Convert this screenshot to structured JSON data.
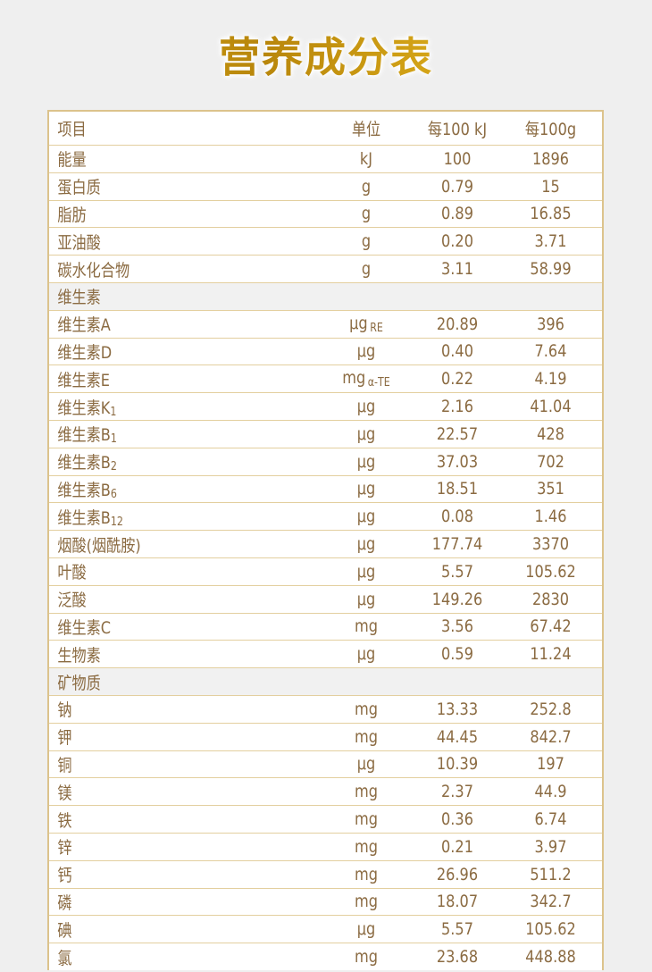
{
  "title": "营养成分表",
  "colors": {
    "text": "#8b6b42",
    "border": "#dcc38c",
    "title_gold": "#c99a12",
    "background": "#efefef"
  },
  "header": {
    "name": "项目",
    "unit": "单位",
    "per100kj": "每100 kJ",
    "per100g": "每100g"
  },
  "rows": [
    {
      "name": "能量",
      "unit": "kJ",
      "per100kj": "100",
      "per100g": "1896"
    },
    {
      "name": "蛋白质",
      "unit": "g",
      "per100kj": "0.79",
      "per100g": "15"
    },
    {
      "name": "脂肪",
      "unit": "g",
      "per100kj": "0.89",
      "per100g": "16.85"
    },
    {
      "name": "亚油酸",
      "unit": "g",
      "per100kj": "0.20",
      "per100g": "3.71"
    },
    {
      "name": "碳水化合物",
      "unit": "g",
      "per100kj": "3.11",
      "per100g": "58.99"
    },
    {
      "section": true,
      "name": "维生素"
    },
    {
      "name": "维生素A",
      "unit": "μg",
      "unit_suffix": "RE",
      "per100kj": "20.89",
      "per100g": "396"
    },
    {
      "name": "维生素D",
      "unit": "μg",
      "per100kj": "0.40",
      "per100g": "7.64"
    },
    {
      "name": "维生素E",
      "unit": "mg",
      "unit_suffix": "α-TE",
      "per100kj": "0.22",
      "per100g": "4.19"
    },
    {
      "name": "维生素K",
      "sub": "1",
      "unit": "μg",
      "per100kj": "2.16",
      "per100g": "41.04"
    },
    {
      "name": "维生素B",
      "sub": "1",
      "unit": "μg",
      "per100kj": "22.57",
      "per100g": "428"
    },
    {
      "name": "维生素B",
      "sub": "2",
      "unit": "μg",
      "per100kj": "37.03",
      "per100g": "702"
    },
    {
      "name": "维生素B",
      "sub": "6",
      "unit": "μg",
      "per100kj": "18.51",
      "per100g": "351"
    },
    {
      "name": "维生素B",
      "sub": "12",
      "unit": "μg",
      "per100kj": "0.08",
      "per100g": "1.46"
    },
    {
      "name": "烟酸(烟酰胺)",
      "unit": "μg",
      "per100kj": "177.74",
      "per100g": "3370"
    },
    {
      "name": "叶酸",
      "unit": "μg",
      "per100kj": "5.57",
      "per100g": "105.62"
    },
    {
      "name": "泛酸",
      "unit": "μg",
      "per100kj": "149.26",
      "per100g": "2830"
    },
    {
      "name": "维生素C",
      "unit": "mg",
      "per100kj": "3.56",
      "per100g": "67.42"
    },
    {
      "name": "生物素",
      "unit": "μg",
      "per100kj": "0.59",
      "per100g": "11.24"
    },
    {
      "section": true,
      "name": "矿物质"
    },
    {
      "name": "钠",
      "unit": "mg",
      "per100kj": "13.33",
      "per100g": "252.8"
    },
    {
      "name": "钾",
      "unit": "mg",
      "per100kj": "44.45",
      "per100g": "842.7"
    },
    {
      "name": "铜",
      "unit": "μg",
      "per100kj": "10.39",
      "per100g": "197"
    },
    {
      "name": "镁",
      "unit": "mg",
      "per100kj": "2.37",
      "per100g": "44.9"
    },
    {
      "name": "铁",
      "unit": "mg",
      "per100kj": "0.36",
      "per100g": "6.74"
    },
    {
      "name": "锌",
      "unit": "mg",
      "per100kj": "0.21",
      "per100g": "3.97"
    },
    {
      "name": "钙",
      "unit": "mg",
      "per100kj": "26.96",
      "per100g": "511.2"
    },
    {
      "name": "磷",
      "unit": "mg",
      "per100kj": "18.07",
      "per100g": "342.7"
    },
    {
      "name": "碘",
      "unit": "μg",
      "per100kj": "5.57",
      "per100g": "105.62"
    },
    {
      "name": "氯",
      "unit": "mg",
      "per100kj": "23.68",
      "per100g": "448.88"
    }
  ]
}
